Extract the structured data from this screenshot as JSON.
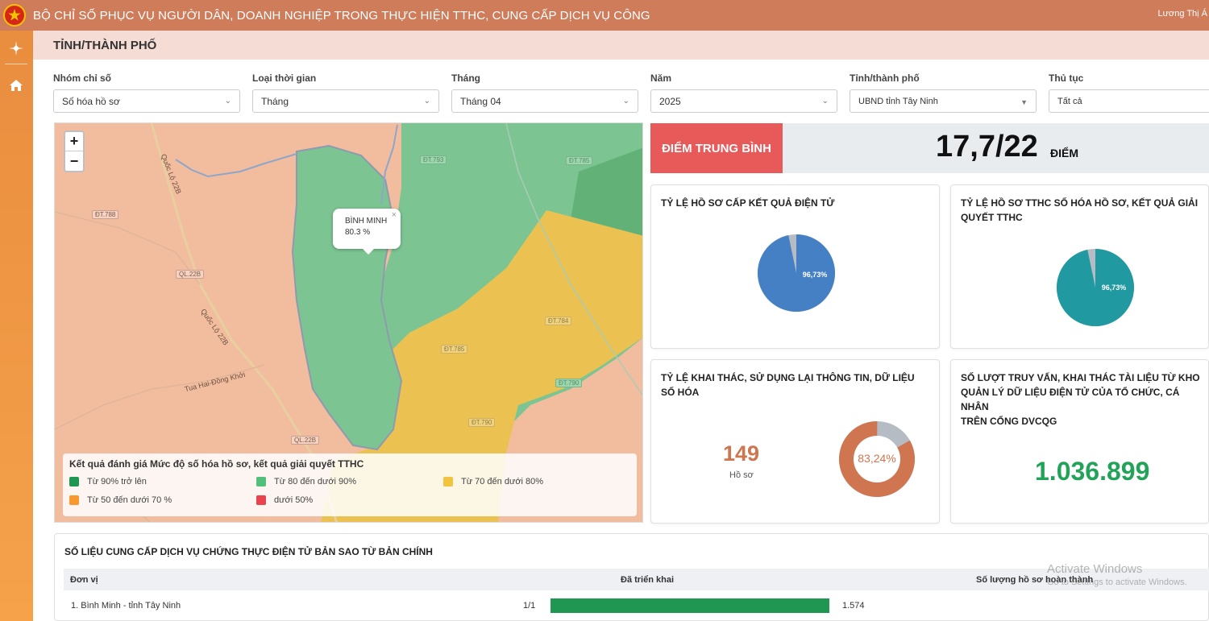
{
  "header": {
    "title": "BỘ CHỈ SỐ PHỤC VỤ NGƯỜI DÂN, DOANH NGHIỆP TRONG THỰC HIỆN TTHC, CUNG CẤP DỊCH VỤ CÔNG",
    "user": "Lương Thị Á"
  },
  "page": {
    "title": "TỈNH/THÀNH PHỐ"
  },
  "filters": [
    {
      "label": "Nhóm chỉ số",
      "value": "Số hóa hồ sơ"
    },
    {
      "label": "Loại thời gian",
      "value": "Tháng"
    },
    {
      "label": "Tháng",
      "value": "Tháng 04"
    },
    {
      "label": "Năm",
      "value": "2025"
    },
    {
      "label": "Tỉnh/thành phố",
      "value": "UBND tỉnh Tây Ninh"
    },
    {
      "label": "Thủ tục",
      "value": "Tất cả"
    }
  ],
  "map": {
    "zoom_in": "+",
    "zoom_out": "−",
    "popup": {
      "name": "BÌNH MINH",
      "value": "80.3 %",
      "close": "×"
    },
    "road_labels": [
      "ĐT.788",
      "QL.22B",
      "QL.22B",
      "ĐT.793",
      "ĐT.785",
      "ĐT.784",
      "ĐT.785",
      "ĐT.790",
      "ĐT.790"
    ],
    "road_names": [
      "Quốc Lộ 22B",
      "Quốc Lộ 22B",
      "Tua Hai-Đồng Khởi"
    ],
    "legend": {
      "title": "Kết quả đánh giá Mức độ số hóa hồ sơ, kết quả giải quyết TTHC",
      "items": [
        {
          "label": "Từ 90% trở lên",
          "color": "#1f9651"
        },
        {
          "label": "Từ 80 đến dưới 90%",
          "color": "#52c07a"
        },
        {
          "label": "Từ 70 đến dưới 80%",
          "color": "#f0c341"
        },
        {
          "label": "Từ 50 đến dưới 70 %",
          "color": "#f7992f"
        },
        {
          "label": "dưới 50%",
          "color": "#e8434e"
        }
      ]
    }
  },
  "score": {
    "label": "ĐIỂM TRUNG BÌNH",
    "value": "17,7/22",
    "unit": "ĐIỂM"
  },
  "cards": {
    "ket_qua_dien_tu": {
      "title": "TỶ LỆ HỒ SƠ CẤP KẾT QUẢ ĐIỆN TỬ",
      "percent_label": "96,73%",
      "percent": 96.73,
      "color": "#4580c4"
    },
    "so_hoa_ho_so": {
      "title_line1": "TỶ LỆ HỒ SƠ TTHC SỐ HÓA HỒ SƠ, KẾT QUẢ GIẢI",
      "title_line2": "QUYẾT TTHC",
      "percent_label": "96,73%",
      "percent": 96.73,
      "color": "#2199a0"
    },
    "khai_thac": {
      "title_line1": "TỶ LỆ KHAI THÁC, SỬ DỤNG LẠI THÔNG TIN, DỮ LIỆU",
      "title_line2": "SỐ HÓA",
      "count": "149",
      "count_unit": "Hồ sơ",
      "percent_label": "83,24%",
      "percent": 83.24,
      "color": "#cf7550"
    },
    "truy_van": {
      "title_line1": "SỐ LƯỢT TRUY VẤN, KHAI THÁC TÀI LIỆU TỪ KHO",
      "title_line2": "QUẢN LÝ DỮ LIỆU ĐIỆN TỬ CỦA TỔ CHỨC, CÁ NHÂN",
      "title_line3": "TRÊN CỔNG DVCQG",
      "value": "1.036.899"
    }
  },
  "table": {
    "title": "SỐ LIỆU CUNG CẤP DỊCH VỤ CHỨNG THỰC ĐIỆN TỬ BẢN SAO TỪ BẢN CHÍNH",
    "headers": {
      "unit": "Đơn vị",
      "deployed": "Đã triển khai",
      "completed": "Số lượng hồ sơ hoàn thành"
    },
    "rows": [
      {
        "unit": "1. Bình Minh - tỉnh Tây Ninh",
        "deployed": "1/1",
        "deployed_ratio": 1.0,
        "completed": "1.574"
      }
    ]
  },
  "watermark": {
    "line1": "Activate Windows",
    "line2": "Go to Settings to activate Windows."
  }
}
